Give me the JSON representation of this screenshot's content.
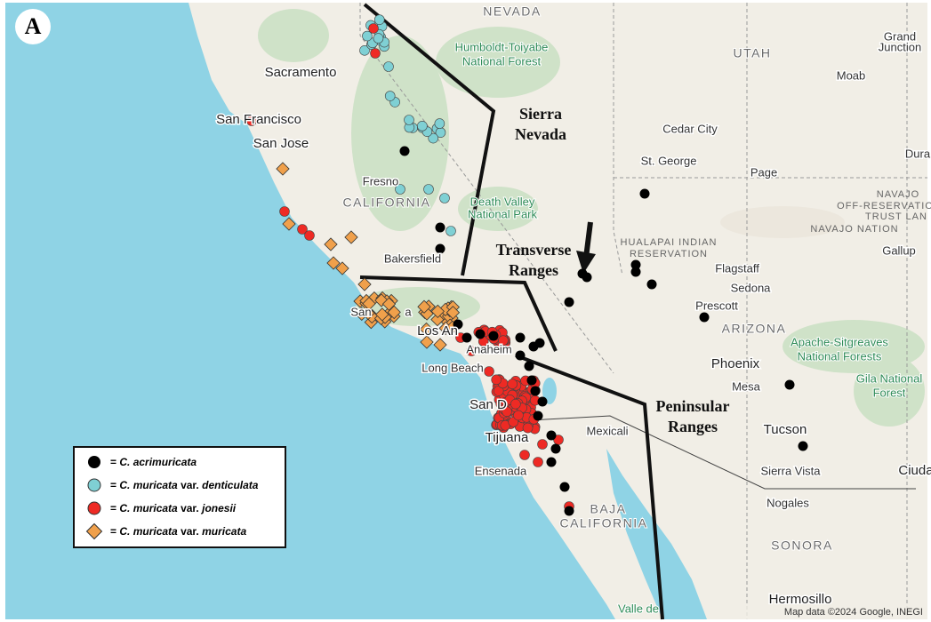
{
  "panel_letter": "A",
  "labels": [
    {
      "text": "NEVADA",
      "kind": "region"
    },
    {
      "text": "Humboldt-Toiyabe",
      "kind": "park"
    },
    {
      "text": "National Forest",
      "kind": "park"
    },
    {
      "text": "UTAH",
      "kind": "region"
    },
    {
      "text": "Grand",
      "kind": "place"
    },
    {
      "text": "Junction",
      "kind": "place"
    },
    {
      "text": "Sacramento",
      "kind": "big"
    },
    {
      "text": "Moab",
      "kind": "place"
    },
    {
      "text": "San Francisco",
      "kind": "big"
    },
    {
      "text": "Cedar City",
      "kind": "place"
    },
    {
      "text": "San Jose",
      "kind": "big"
    },
    {
      "text": "Dura",
      "kind": "place"
    },
    {
      "text": "St. George",
      "kind": "place"
    },
    {
      "text": "Page",
      "kind": "place"
    },
    {
      "text": "Fresno",
      "kind": "place"
    },
    {
      "text": "NAVAJO",
      "kind": "reserve"
    },
    {
      "text": "OFF-RESERVATION",
      "kind": "reserve"
    },
    {
      "text": "TRUST LAN",
      "kind": "reserve"
    },
    {
      "text": "CALIFORNIA",
      "kind": "region"
    },
    {
      "text": "Death Valley",
      "kind": "park"
    },
    {
      "text": "National Park",
      "kind": "park"
    },
    {
      "text": "NAVAJO NATION",
      "kind": "reserve"
    },
    {
      "text": "HUALAPAI INDIAN",
      "kind": "reserve"
    },
    {
      "text": "RESERVATION",
      "kind": "reserve"
    },
    {
      "text": "Gallup",
      "kind": "place"
    },
    {
      "text": "Bakersfield",
      "kind": "place"
    },
    {
      "text": "Flagstaff",
      "kind": "place"
    },
    {
      "text": "Sedona",
      "kind": "place"
    },
    {
      "text": "San",
      "kind": "place"
    },
    {
      "text": "a",
      "kind": "place"
    },
    {
      "text": "Prescott",
      "kind": "place"
    },
    {
      "text": "ARIZONA",
      "kind": "region"
    },
    {
      "text": "Apache-Sitgreaves",
      "kind": "park"
    },
    {
      "text": "National Forests",
      "kind": "park"
    },
    {
      "text": "Los An",
      "kind": "big"
    },
    {
      "text": "Anaheim",
      "kind": "place"
    },
    {
      "text": "Long Beach",
      "kind": "place"
    },
    {
      "text": "Phoenix",
      "kind": "big"
    },
    {
      "text": "Mesa",
      "kind": "place"
    },
    {
      "text": "Gila National",
      "kind": "park"
    },
    {
      "text": "Forest",
      "kind": "park"
    },
    {
      "text": "San D",
      "kind": "big"
    },
    {
      "text": "Tucson",
      "kind": "big"
    },
    {
      "text": "Mexicali",
      "kind": "place"
    },
    {
      "text": "Tijuana",
      "kind": "big"
    },
    {
      "text": "Ensenada",
      "kind": "place"
    },
    {
      "text": "Sierra Vista",
      "kind": "place"
    },
    {
      "text": "Ciuda",
      "kind": "big"
    },
    {
      "text": "Nogales",
      "kind": "place"
    },
    {
      "text": "BAJA",
      "kind": "region"
    },
    {
      "text": "CALIFORNIA",
      "kind": "region"
    },
    {
      "text": "SONORA",
      "kind": "region"
    },
    {
      "text": "Hermosillo",
      "kind": "big"
    },
    {
      "text": "Valle de",
      "kind": "park"
    }
  ],
  "ranges": [
    {
      "lines": [
        "Sierra",
        "Nevada"
      ]
    },
    {
      "lines": [
        "Transverse",
        "Ranges"
      ]
    },
    {
      "lines": [
        "Peninsular",
        "Ranges"
      ]
    }
  ],
  "legend": [
    {
      "equals": "=",
      "species": "C. acrimuricata",
      "rank": "",
      "epithet": "",
      "color": "#000000",
      "shape": "circle"
    },
    {
      "equals": "=",
      "species": "C. muricata",
      "rank": "var.",
      "epithet": "denticulata",
      "color": "#7fd0d4",
      "shape": "circle"
    },
    {
      "equals": "=",
      "species": "C. muricata",
      "rank": "var.",
      "epithet": "jonesii",
      "color": "#ee2a24",
      "shape": "circle"
    },
    {
      "equals": "=",
      "species": "C. muricata",
      "rank": "var.",
      "epithet": "muricata",
      "color": "#f0a04b",
      "shape": "diamond"
    }
  ],
  "attribution": "Map data ©2024 Google, INEGI"
}
